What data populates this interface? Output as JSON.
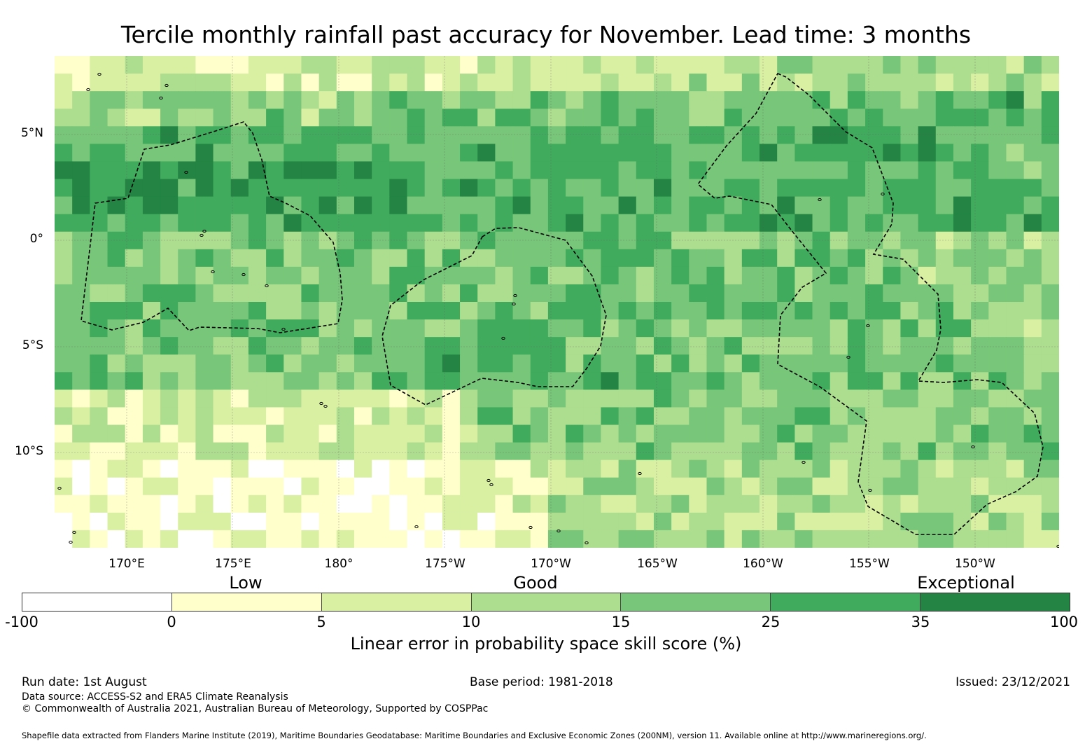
{
  "title": "Tercile monthly rainfall past accuracy for November. Lead time: 3 months",
  "map": {
    "lat_labels": [
      "5°N",
      "0°",
      "5°S",
      "10°S"
    ],
    "lon_labels": [
      "170°E",
      "175°E",
      "180°",
      "175°W",
      "170°W",
      "165°W",
      "160°W",
      "155°W",
      "150°W"
    ],
    "lat_range": [
      -14.6,
      8.5
    ],
    "lon_range": [
      166.6,
      213.9
    ],
    "gridlines": true,
    "boundary_style": "dashed"
  },
  "legend": {
    "tiers": [
      "Low",
      "Good",
      "Exceptional"
    ],
    "ticks": [
      "-100",
      "0",
      "5",
      "10",
      "15",
      "25",
      "35",
      "100"
    ],
    "colors": [
      "#ffffff",
      "#ffffcc",
      "#d9f0a3",
      "#addd8e",
      "#78c679",
      "#41ab5d",
      "#238443"
    ],
    "label": "Linear error in probability space skill score (%)"
  },
  "footer": {
    "run_date": "Run date: 1st August",
    "base_period": "Base period: 1981-2018",
    "issued": "Issued: 23/12/2021",
    "data_source": "Data source: ACCESS-S2 and ERA5 Climate Reanalysis",
    "copyright": "© Commonwealth of Australia 2021, Australian Bureau of Meteorology, Supported by COSPPac",
    "shapefile": "Shapefile data extracted from Flanders Marine Institute (2019), Maritime Boundaries Geodatabase: Maritime Boundaries and Exclusive Economic Zones (200NM), version 11. Available online at http://www.marineregions.org/."
  }
}
